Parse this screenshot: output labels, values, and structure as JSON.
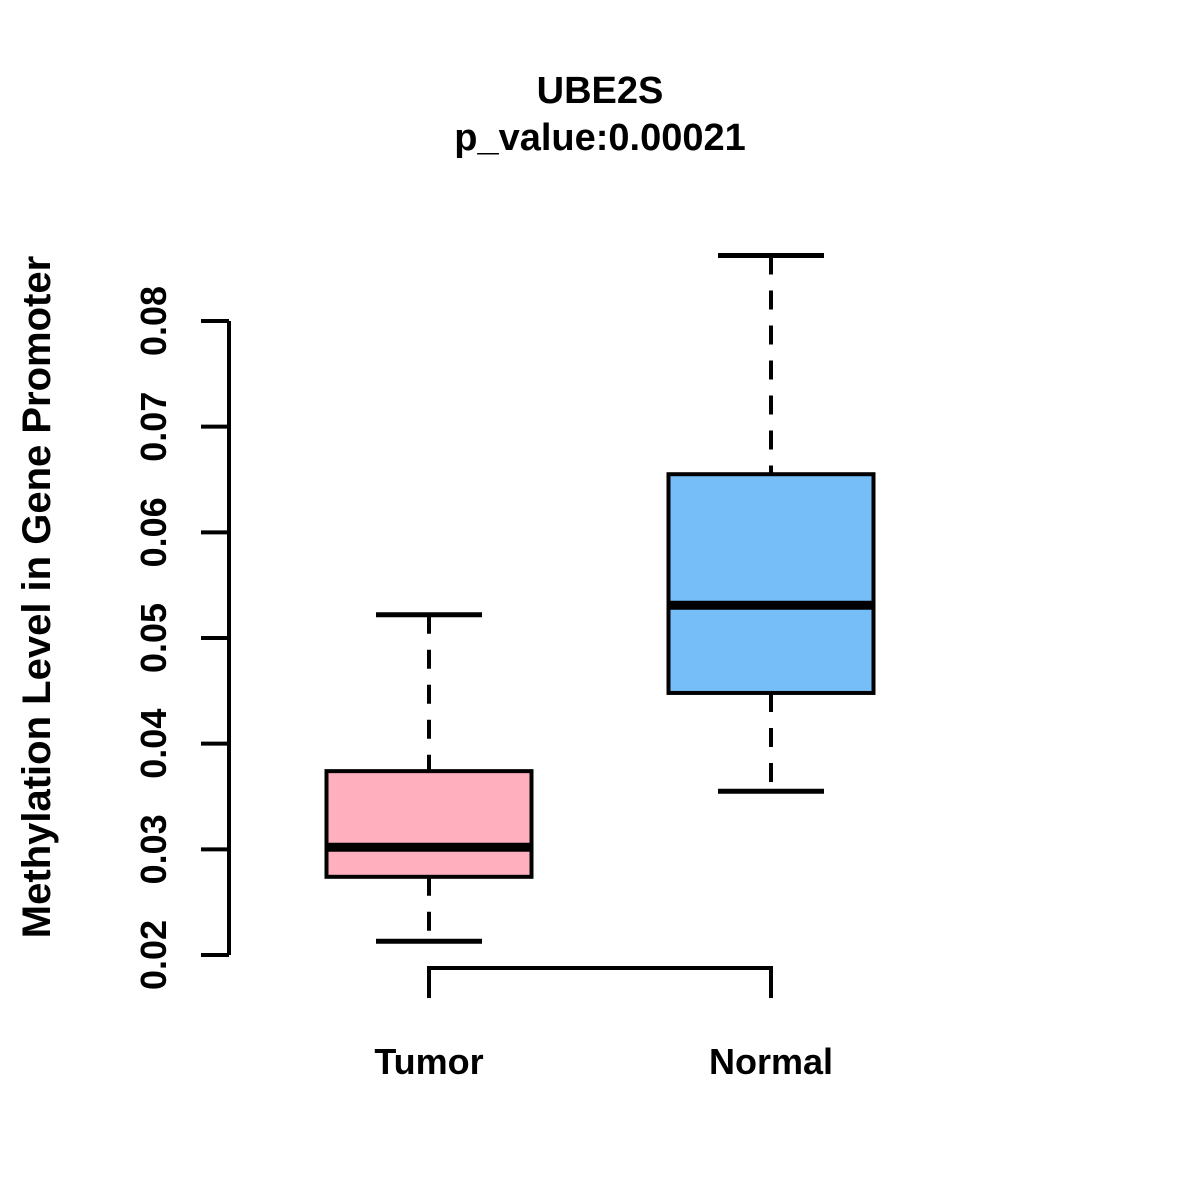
{
  "chart_data": {
    "type": "boxplot",
    "title": "UBE2S",
    "subtitle": "p_value:0.00021",
    "ylabel": "Methylation Level in Gene Promoter",
    "xlabel": "",
    "categories": [
      "Tumor",
      "Normal"
    ],
    "ylim": [
      0.02,
      0.08
    ],
    "ytick_labels": [
      "0.02",
      "0.03",
      "0.04",
      "0.05",
      "0.06",
      "0.07",
      "0.08"
    ],
    "grid": false,
    "legend": "none",
    "background_color": "#FFFFFF",
    "line_color": "#000000",
    "series": [
      {
        "name": "Tumor",
        "box_color": "#FFAFBE",
        "whisker_low": 0.0213,
        "q1": 0.0274,
        "median": 0.0302,
        "q3": 0.0374,
        "whisker_high": 0.0522
      },
      {
        "name": "Normal",
        "box_color": "#76BEF8",
        "whisker_low": 0.0355,
        "q1": 0.0448,
        "median": 0.0531,
        "q3": 0.0655,
        "whisker_high": 0.0862
      }
    ]
  }
}
